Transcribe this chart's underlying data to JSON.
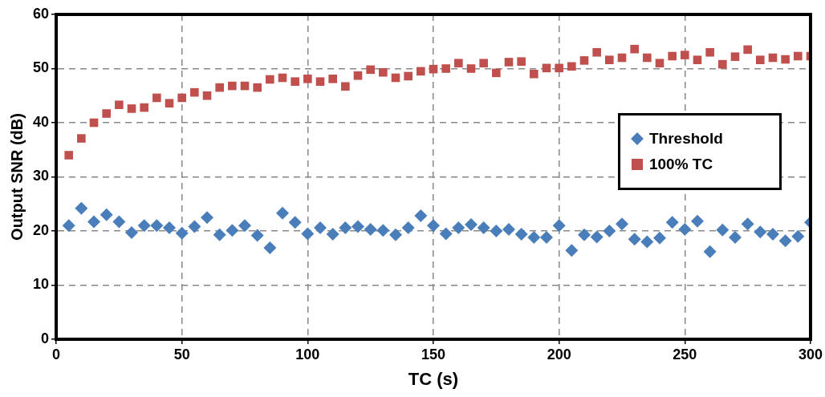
{
  "chart_data": {
    "type": "scatter",
    "xlabel": "TC (s)",
    "ylabel": "Output SNR (dB)",
    "x": [
      5,
      10,
      15,
      20,
      25,
      30,
      35,
      40,
      45,
      50,
      55,
      60,
      65,
      70,
      75,
      80,
      85,
      90,
      95,
      100,
      105,
      110,
      115,
      120,
      125,
      130,
      135,
      140,
      145,
      150,
      155,
      160,
      165,
      170,
      175,
      180,
      185,
      190,
      195,
      200,
      205,
      210,
      215,
      220,
      225,
      230,
      235,
      240,
      245,
      250,
      255,
      260,
      265,
      270,
      275,
      280,
      285,
      290,
      295,
      300
    ],
    "series": [
      {
        "name": "Threshold",
        "color": "#4a7ebb",
        "marker": "diamond",
        "values": [
          21,
          24.2,
          21.7,
          23,
          21.7,
          19.7,
          21,
          21,
          20.6,
          19.6,
          20.8,
          22.5,
          19.3,
          20.1,
          21,
          19.2,
          16.9,
          23.3,
          21.6,
          19.5,
          20.6,
          19.4,
          20.6,
          20.8,
          20.3,
          20.1,
          19.3,
          20.6,
          22.8,
          21,
          19.5,
          20.6,
          21.2,
          20.6,
          20,
          20.3,
          19.4,
          18.8,
          18.8,
          21,
          16.4,
          19.3,
          18.9,
          20,
          21.3,
          18.5,
          18,
          18.7,
          21.6,
          20.3,
          21.8,
          16.2,
          20.2,
          18.8,
          21.3,
          19.8,
          19.4,
          18.2,
          19,
          21.6
        ]
      },
      {
        "name": "100% TC",
        "color": "#c0504d",
        "marker": "square",
        "values": [
          34,
          37.1,
          40,
          41.7,
          43.3,
          42.6,
          42.8,
          44.6,
          43.6,
          44.6,
          45.6,
          45,
          46.5,
          46.8,
          46.8,
          46.5,
          48,
          48.3,
          47.6,
          48.1,
          47.6,
          48.1,
          46.7,
          48.7,
          49.8,
          49.3,
          48.3,
          48.6,
          49.5,
          49.9,
          50,
          51,
          50,
          51,
          49.2,
          51.2,
          51.3,
          49,
          50.1,
          50.1,
          50.4,
          51.5,
          53,
          51.6,
          52,
          53.6,
          52,
          51,
          52.3,
          52.5,
          51.6,
          53,
          50.8,
          52.2,
          53.5,
          51.6,
          52,
          51.7,
          52.3,
          52.3
        ]
      }
    ],
    "xlim": [
      0,
      300
    ],
    "xticks": [
      0,
      50,
      100,
      150,
      200,
      250,
      300
    ],
    "ylim": [
      0,
      60
    ],
    "yticks": [
      0,
      10,
      20,
      30,
      40,
      50,
      60
    ],
    "grid": true,
    "legend": "right"
  }
}
